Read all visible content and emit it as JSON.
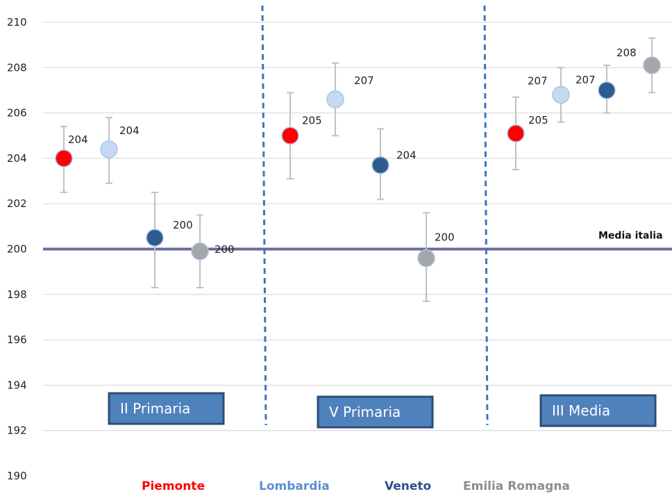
{
  "chart_data": {
    "type": "scatter",
    "ylim": [
      190,
      210
    ],
    "yticks": [
      190,
      192,
      194,
      196,
      198,
      200,
      202,
      204,
      206,
      208,
      210
    ],
    "grid": true,
    "groups": [
      "II Primaria",
      "V Primaria",
      "III Media"
    ],
    "reference_line": {
      "label": "Media italia",
      "value": 200,
      "color": "#6a6a9e"
    },
    "series": [
      {
        "name": "Piemonte",
        "color": "#ff0000",
        "values": [
          204.0,
          205.0,
          205.1
        ],
        "err_low": [
          202.5,
          203.1,
          203.5
        ],
        "err_high": [
          205.4,
          206.9,
          206.7
        ],
        "labels": [
          "204",
          "205",
          "205"
        ]
      },
      {
        "name": "Lombardia",
        "color": "#c5d9f1",
        "values": [
          204.4,
          206.6,
          206.8
        ],
        "err_low": [
          202.9,
          205.0,
          205.6
        ],
        "err_high": [
          205.8,
          208.2,
          208.0
        ],
        "labels": [
          "204",
          "207",
          "207"
        ]
      },
      {
        "name": "Veneto",
        "color": "#2f5b91",
        "values": [
          200.5,
          203.7,
          207.0
        ],
        "err_low": [
          198.3,
          202.2,
          206.0
        ],
        "err_high": [
          202.5,
          205.3,
          208.1
        ],
        "labels": [
          "200",
          "204",
          "207"
        ]
      },
      {
        "name": "Emilia Romagna",
        "color": "#a6a6a6",
        "values": [
          199.9,
          199.6,
          208.1
        ],
        "err_low": [
          198.3,
          197.7,
          206.9
        ],
        "err_high": [
          201.5,
          201.6,
          209.3
        ],
        "labels": [
          "200",
          "200",
          "208"
        ]
      }
    ],
    "legend_colors": [
      "#ff0000",
      "#5b8fd0",
      "#2f4f8a",
      "#8c8c8c"
    ],
    "box_color": "#4f81bd",
    "box_border": "#2c4d75"
  }
}
